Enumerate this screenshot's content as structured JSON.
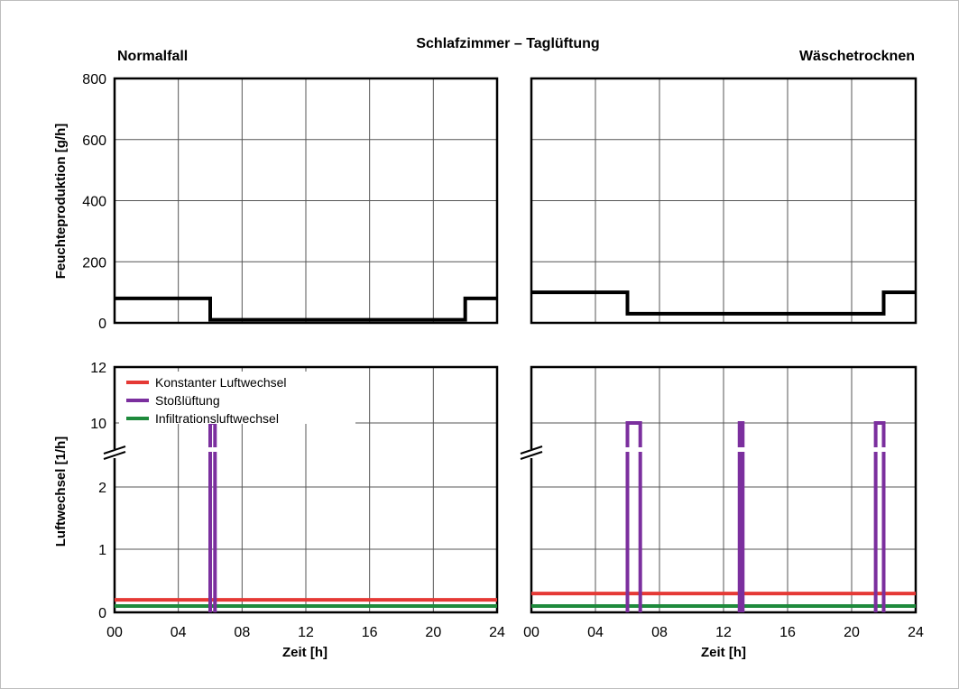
{
  "title": "Schlafzimmer – Taglüftung",
  "colors": {
    "red": "#e53935",
    "purple": "#7b2f9e",
    "green": "#1e8a3c",
    "black": "#000000",
    "grid": "#555555"
  },
  "chart_data": [
    {
      "type": "line",
      "panel": "top-left",
      "title": "Normalfall",
      "ylabel": "Feuchteproduktion [g/h]",
      "ylim": [
        0,
        800
      ],
      "xlim": [
        0,
        24
      ],
      "yticks": [
        "0",
        "200",
        "400",
        "600",
        "800"
      ],
      "grid": true,
      "series": [
        {
          "x": [
            0,
            6,
            6,
            22,
            22,
            24
          ],
          "y": [
            80,
            80,
            10,
            10,
            80,
            80
          ]
        }
      ]
    },
    {
      "type": "line",
      "panel": "top-right",
      "title": "Wäschetrocknen",
      "ylim": [
        0,
        800
      ],
      "xlim": [
        0,
        24
      ],
      "grid": true,
      "series": [
        {
          "x": [
            0,
            6,
            6,
            22,
            22,
            24
          ],
          "y": [
            100,
            100,
            30,
            30,
            100,
            100
          ]
        }
      ]
    },
    {
      "type": "line",
      "panel": "bottom-left",
      "ylabel": "Luftwechsel [1/h]",
      "xlabel": "Zeit [h]",
      "xlim": [
        0,
        24
      ],
      "xticks": [
        "00",
        "04",
        "08",
        "12",
        "16",
        "20",
        "24"
      ],
      "yticks": [
        "0",
        "1",
        "2",
        "10",
        "12"
      ],
      "y_axis_break": "between 2 and 10",
      "grid": true,
      "legend": {
        "placement": "top-left",
        "entries": [
          "Konstanter Luftwechsel",
          "Stoßlüftung",
          "Infiltrationsluftwechsel"
        ]
      },
      "series": [
        {
          "name": "Konstanter Luftwechsel",
          "x": [
            0,
            24
          ],
          "y": [
            0.2,
            0.2
          ]
        },
        {
          "name": "Stoßlüftung",
          "x": [
            6,
            6,
            6.3,
            6.3
          ],
          "y": [
            0,
            10,
            10,
            0
          ]
        },
        {
          "name": "Infiltrationsluftwechsel",
          "x": [
            0,
            24
          ],
          "y": [
            0.1,
            0.1
          ]
        }
      ]
    },
    {
      "type": "line",
      "panel": "bottom-right",
      "xlabel": "Zeit [h]",
      "xlim": [
        0,
        24
      ],
      "xticks": [
        "00",
        "04",
        "08",
        "12",
        "16",
        "20",
        "24"
      ],
      "y_axis_break": "between 2 and 10",
      "grid": true,
      "series": [
        {
          "name": "Konstanter Luftwechsel",
          "x": [
            0,
            24
          ],
          "y": [
            0.3,
            0.3
          ]
        },
        {
          "name": "Stoßlüftung",
          "pulses": [
            [
              6,
              6.8
            ],
            [
              13,
              13.2
            ],
            [
              21.5,
              22
            ]
          ],
          "peak": 10
        },
        {
          "name": "Infiltrationsluftwechsel",
          "x": [
            0,
            24
          ],
          "y": [
            0.1,
            0.1
          ]
        }
      ]
    }
  ]
}
